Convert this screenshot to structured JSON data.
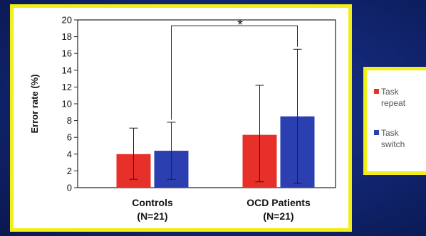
{
  "chart_data": {
    "type": "bar",
    "ylabel": "Error rate (%)",
    "xlabel": "",
    "ylim": [
      0,
      20
    ],
    "yticks": [
      0,
      2,
      4,
      6,
      8,
      10,
      12,
      14,
      16,
      18,
      20
    ],
    "grid": false,
    "categories": [
      {
        "line1": "Controls",
        "line2": "(N=21)"
      },
      {
        "line1": "OCD Patients",
        "line2": "(N=21)"
      }
    ],
    "series": [
      {
        "name_line1": "Task",
        "name_line2": "repeat",
        "color": "#e8302a",
        "values": [
          4.0,
          6.3
        ],
        "error_low": [
          1.0,
          0.7
        ],
        "error_high": [
          7.1,
          12.2
        ]
      },
      {
        "name_line1": "Task",
        "name_line2": "switch",
        "color": "#2b3fb0",
        "values": [
          4.4,
          8.5
        ],
        "error_low": [
          1.0,
          0.5
        ],
        "error_high": [
          7.8,
          16.5
        ]
      }
    ],
    "annotation": {
      "text": "*",
      "between_categories": [
        0,
        1
      ],
      "level": 19.3
    },
    "legend_position": "right-outside"
  },
  "colors": {
    "frame": "#f2ee1a",
    "background": "#112570"
  }
}
